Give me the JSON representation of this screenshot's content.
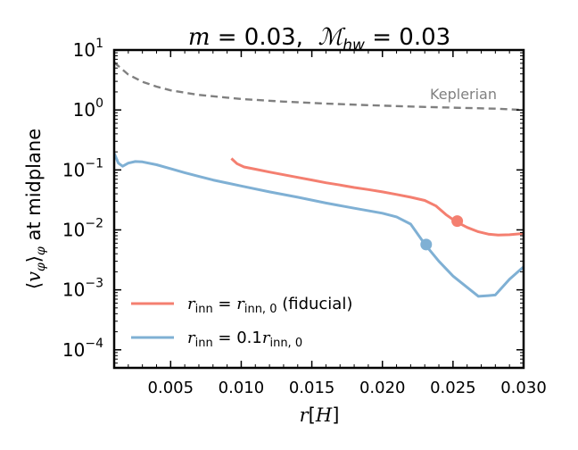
{
  "chart_data": {
    "type": "line",
    "title_text": "m = 0.03,  ℳ_hw = 0.03",
    "title_parts": {
      "m_sym": "m",
      "eq1": " = 0.03,  ",
      "M_sym": "ℳ",
      "M_sub": "hw",
      "eq2": " = 0.03"
    },
    "xlabel_parts": {
      "r": "r",
      "bracket": "[",
      "H": "H",
      "close": "]"
    },
    "ylabel": "⟨v_φ⟩_φ at midplane",
    "ylabel_parts": {
      "open": "⟨",
      "v": "v",
      "sub1": "φ",
      "close": "⟩",
      "sub2": "φ",
      "rest": " at midplane"
    },
    "xlim": [
      0.001,
      0.03
    ],
    "ylim": [
      5e-05,
      10
    ],
    "yscale": "log",
    "xticks": [
      0.005,
      0.01,
      0.015,
      0.02,
      0.025,
      0.03
    ],
    "xtick_labels": [
      "0.005",
      "0.010",
      "0.015",
      "0.020",
      "0.025",
      "0.030"
    ],
    "yticks": [
      {
        "value": 10,
        "base": "10",
        "exp": "1"
      },
      {
        "value": 1,
        "base": "10",
        "exp": "0"
      },
      {
        "value": 0.1,
        "base": "10",
        "exp": "−1"
      },
      {
        "value": 0.01,
        "base": "10",
        "exp": "−2"
      },
      {
        "value": 0.001,
        "base": "10",
        "exp": "−3"
      },
      {
        "value": 0.0001,
        "base": "10",
        "exp": "−4"
      }
    ],
    "series": [
      {
        "name": "Keplerian",
        "label": "Keplerian",
        "color": "#808080",
        "dashed": true,
        "x": [
          0.001,
          0.002,
          0.003,
          0.004,
          0.005,
          0.007,
          0.01,
          0.013,
          0.016,
          0.019,
          0.022,
          0.025,
          0.028,
          0.03
        ],
        "y": [
          6.2,
          3.9,
          2.95,
          2.45,
          2.12,
          1.78,
          1.52,
          1.38,
          1.28,
          1.2,
          1.14,
          1.09,
          1.05,
          1.0
        ]
      },
      {
        "name": "fiducial",
        "legend": {
          "r1": "r",
          "sub1": "inn",
          "eq": " = ",
          "r2": "r",
          "sub2": "inn, 0",
          "tail": " (fiducial)"
        },
        "color": "#f47f70",
        "dashed": false,
        "x": [
          0.0093,
          0.0097,
          0.0102,
          0.011,
          0.012,
          0.013,
          0.014,
          0.015,
          0.016,
          0.017,
          0.018,
          0.019,
          0.02,
          0.021,
          0.022,
          0.023,
          0.0238,
          0.0245,
          0.0252,
          0.026,
          0.0268,
          0.0275,
          0.0282,
          0.029,
          0.03
        ],
        "y": [
          0.155,
          0.127,
          0.112,
          0.103,
          0.092,
          0.083,
          0.075,
          0.068,
          0.061,
          0.056,
          0.051,
          0.047,
          0.043,
          0.039,
          0.035,
          0.031,
          0.025,
          0.018,
          0.0138,
          0.011,
          0.0093,
          0.0085,
          0.0082,
          0.0083,
          0.0087
        ],
        "marker": {
          "x": 0.0253,
          "y": 0.014
        }
      },
      {
        "name": "0.1 r_inn,0",
        "legend": {
          "r1": "r",
          "sub1": "inn",
          "eq": " = 0.1",
          "r2": "r",
          "sub2": "inn, 0",
          "tail": ""
        },
        "color": "#7fb0d4",
        "dashed": false,
        "x": [
          0.001,
          0.0013,
          0.0016,
          0.002,
          0.0025,
          0.003,
          0.004,
          0.005,
          0.006,
          0.007,
          0.008,
          0.01,
          0.012,
          0.014,
          0.016,
          0.018,
          0.02,
          0.021,
          0.022,
          0.023,
          0.024,
          0.025,
          0.026,
          0.0268,
          0.0275,
          0.028,
          0.029,
          0.0298,
          0.03
        ],
        "y": [
          0.19,
          0.13,
          0.115,
          0.13,
          0.138,
          0.136,
          0.122,
          0.105,
          0.09,
          0.078,
          0.068,
          0.054,
          0.043,
          0.035,
          0.028,
          0.023,
          0.019,
          0.0165,
          0.0125,
          0.0058,
          0.003,
          0.0017,
          0.0011,
          0.00078,
          0.0008,
          0.00082,
          0.0015,
          0.0022,
          0.0024
        ],
        "marker": {
          "x": 0.0231,
          "y": 0.0057
        }
      }
    ]
  }
}
